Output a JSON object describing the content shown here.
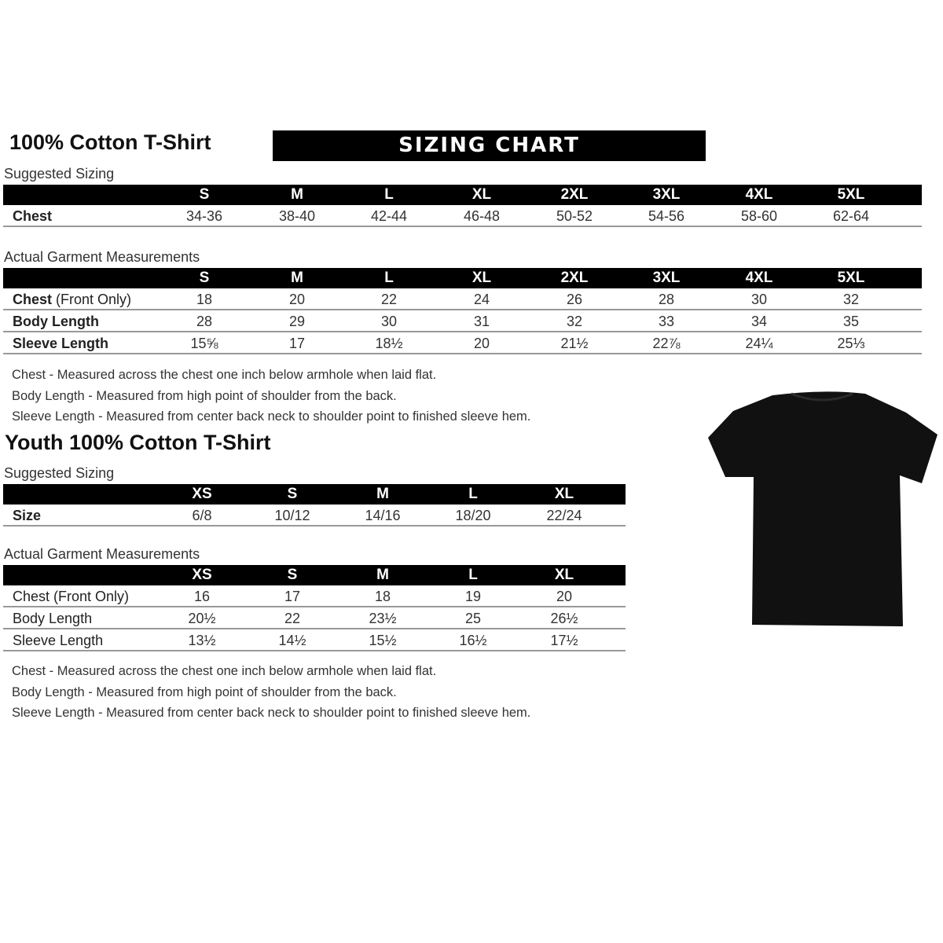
{
  "adult": {
    "title": "100% Cotton T-Shirt",
    "banner": "SIZING CHART",
    "suggested": {
      "label": "Suggested Sizing",
      "sizes": [
        "S",
        "M",
        "L",
        "XL",
        "2XL",
        "3XL",
        "4XL",
        "5XL"
      ],
      "rows": [
        {
          "label": "Chest",
          "values": [
            "34-36",
            "38-40",
            "42-44",
            "46-48",
            "50-52",
            "54-56",
            "58-60",
            "62-64"
          ]
        }
      ]
    },
    "actual": {
      "label": "Actual Garment Measurements",
      "sizes": [
        "S",
        "M",
        "L",
        "XL",
        "2XL",
        "3XL",
        "4XL",
        "5XL"
      ],
      "rows": [
        {
          "label": "Chest",
          "label_suffix": " (Front Only)",
          "values": [
            "18",
            "20",
            "22",
            "24",
            "26",
            "28",
            "30",
            "32"
          ]
        },
        {
          "label": "Body Length",
          "label_suffix": "",
          "values": [
            "28",
            "29",
            "30",
            "31",
            "32",
            "33",
            "34",
            "35"
          ]
        },
        {
          "label": "Sleeve Length",
          "label_suffix": "",
          "values": [
            "15⅝",
            "17",
            "18½",
            "20",
            "21½",
            "22⅞",
            "24¼",
            "25⅓"
          ]
        }
      ]
    },
    "notes": [
      "Chest - Measured across the chest one inch below armhole when laid flat.",
      "Body Length - Measured from high point of shoulder from the back.",
      "Sleeve Length - Measured from center back neck to shoulder point to finished sleeve hem."
    ]
  },
  "youth": {
    "title": "Youth 100% Cotton T-Shirt",
    "suggested": {
      "label": "Suggested Sizing",
      "sizes": [
        "XS",
        "S",
        "M",
        "L",
        "XL"
      ],
      "rows": [
        {
          "label": "Size",
          "values": [
            "6/8",
            "10/12",
            "14/16",
            "18/20",
            "22/24"
          ]
        }
      ]
    },
    "actual": {
      "label": "Actual Garment Measurements",
      "sizes": [
        "XS",
        "S",
        "M",
        "L",
        "XL"
      ],
      "rows": [
        {
          "label": "Chest (Front Only)",
          "label_suffix": "",
          "values": [
            "16",
            "17",
            "18",
            "19",
            "20"
          ]
        },
        {
          "label": "Body Length",
          "label_suffix": "",
          "values": [
            "20½",
            "22",
            "23½",
            "25",
            "26½"
          ]
        },
        {
          "label": "Sleeve Length",
          "label_suffix": "",
          "values": [
            "13½",
            "14½",
            "15½",
            "16½",
            "17½"
          ]
        }
      ]
    },
    "notes": [
      "Chest - Measured across the chest one inch below armhole when laid flat.",
      "Body Length - Measured from high point of shoulder from the back.",
      "Sleeve Length - Measured from center back neck to shoulder point to finished sleeve hem."
    ]
  },
  "image": {
    "icon": "tshirt-icon",
    "color": "#111111"
  }
}
